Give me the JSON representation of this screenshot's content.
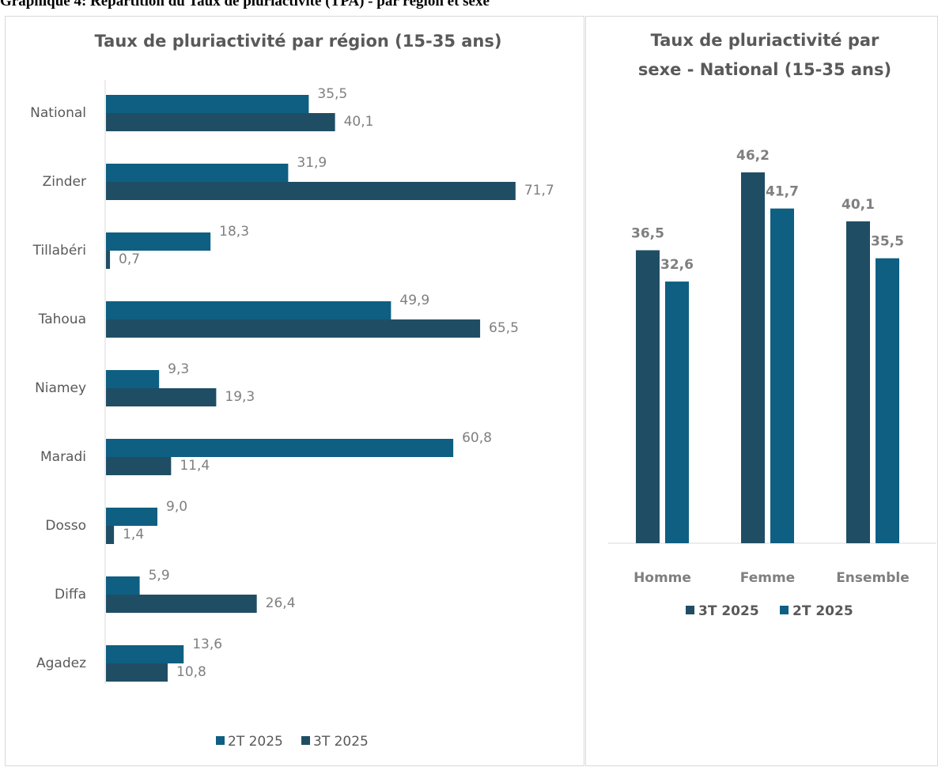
{
  "heading": "Graphique 4: Répartition du Taux de pluriactivité (TPA) - par région et sexe",
  "chart_data": [
    {
      "type": "bar",
      "orientation": "horizontal",
      "title": "Taux de pluriactivité par région (15-35 ans)",
      "categories": [
        "National",
        "Zinder",
        "Tillabéri",
        "Tahoua",
        "Niamey",
        "Maradi",
        "Dosso",
        "Diffa",
        "Agadez"
      ],
      "series": [
        {
          "name": "2T 2025",
          "color": "#0e5f82",
          "values": [
            35.5,
            31.9,
            18.3,
            49.9,
            9.3,
            60.8,
            9.0,
            5.9,
            13.6
          ],
          "labels": [
            "35,5",
            "31,9",
            "18,3",
            "49,9",
            "9,3",
            "60,8",
            "9,0",
            "5,9",
            "13,6"
          ]
        },
        {
          "name": "3T 2025",
          "color": "#1f4e64",
          "values": [
            40.1,
            71.7,
            0.7,
            65.5,
            19.3,
            11.4,
            1.4,
            26.4,
            10.8
          ],
          "labels": [
            "40,1",
            "71,7",
            "0,7",
            "65,5",
            "19,3",
            "11,4",
            "1,4",
            "26,4",
            "10,8"
          ]
        }
      ],
      "xlim": [
        0,
        80
      ],
      "legend": "bottom",
      "grid": false
    },
    {
      "type": "bar",
      "orientation": "vertical",
      "title": "Taux de pluriactivité par sexe - National (15-35 ans)",
      "title_lines": [
        "Taux de pluriactivité par",
        "sexe - National (15-35 ans)"
      ],
      "categories": [
        "Homme",
        "Femme",
        "Ensemble"
      ],
      "series": [
        {
          "name": "3T 2025",
          "color": "#1f4e64",
          "values": [
            36.5,
            46.2,
            40.1
          ],
          "labels": [
            "36,5",
            "46,2",
            "40,1"
          ]
        },
        {
          "name": "2T 2025",
          "color": "#0e5f82",
          "values": [
            32.6,
            41.7,
            35.5
          ],
          "labels": [
            "32,6",
            "41,7",
            "35,5"
          ]
        }
      ],
      "ylim": [
        0,
        50
      ],
      "legend": "bottom",
      "grid": false
    }
  ]
}
